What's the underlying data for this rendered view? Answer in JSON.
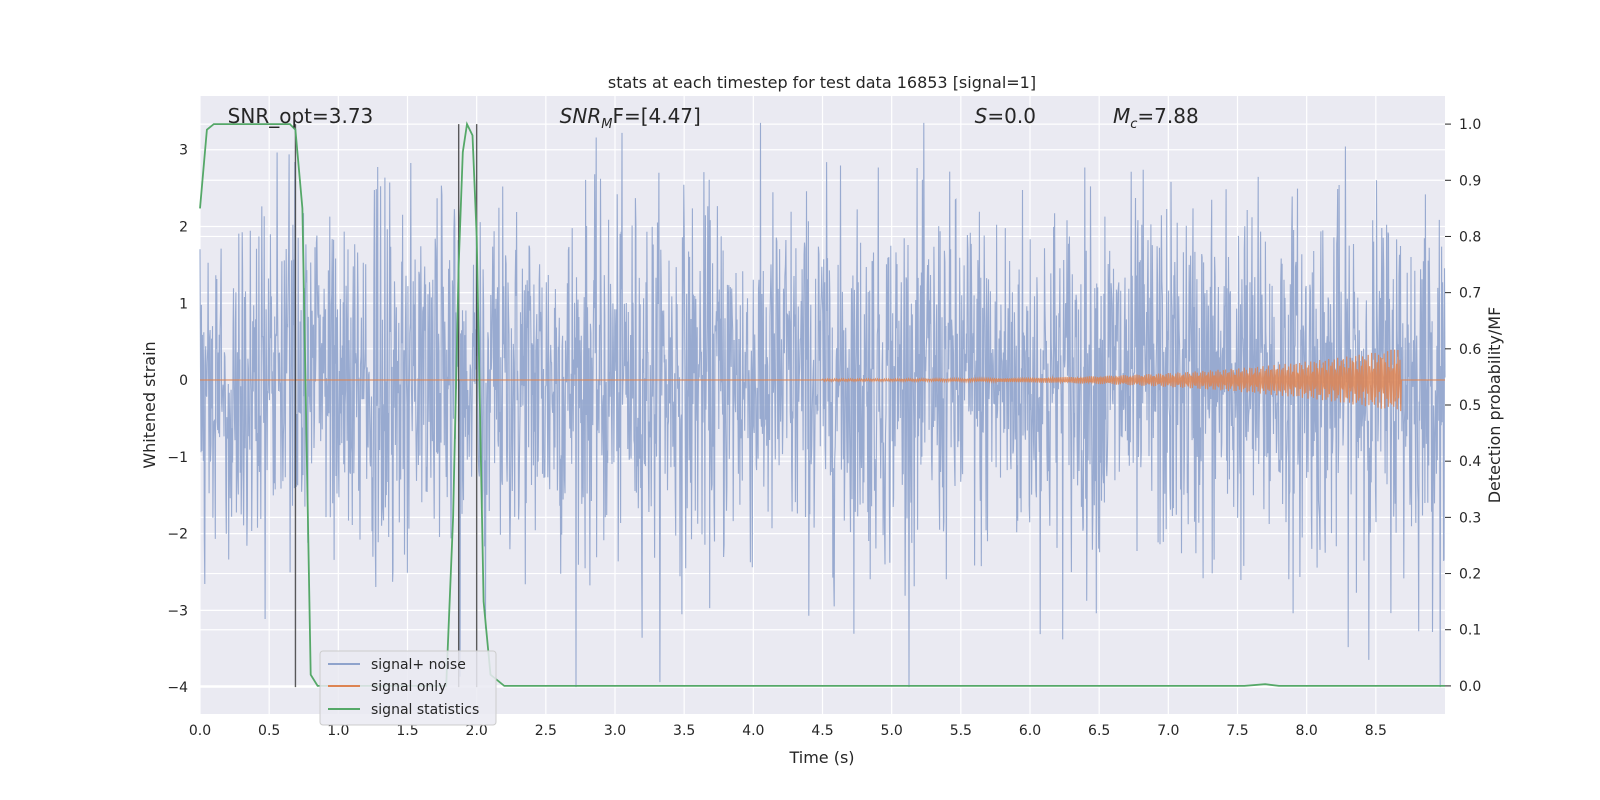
{
  "chart_data": {
    "type": "line",
    "title": "stats at each timestep for test data 16853 [signal=1]",
    "xlabel": "Time (s)",
    "ylabel": "Whitened strain",
    "ylabel_right": "Detection probability/MF",
    "xlim": [
      0.0,
      9.0
    ],
    "ylim": [
      -4.35,
      3.7
    ],
    "ylim_right": [
      -0.05,
      1.05
    ],
    "x_ticks": [
      "0.0",
      "0.5",
      "1.0",
      "1.5",
      "2.0",
      "2.5",
      "3.0",
      "3.5",
      "4.0",
      "4.5",
      "5.0",
      "5.5",
      "6.0",
      "6.5",
      "7.0",
      "7.5",
      "8.0",
      "8.5"
    ],
    "y_ticks": [
      "−4",
      "−3",
      "−2",
      "−1",
      "0",
      "1",
      "2",
      "3"
    ],
    "y_ticks_right": [
      "0.0",
      "0.1",
      "0.2",
      "0.3",
      "0.4",
      "0.5",
      "0.6",
      "0.7",
      "0.8",
      "0.9",
      "1.0"
    ],
    "grid": true,
    "legend_position": "lower-left",
    "annotations": [
      {
        "prefix": "SNR_opt=3.73",
        "sub": "",
        "suffix": "",
        "x": 0.2
      },
      {
        "prefix": "SNR",
        "sub": "M",
        "suffix": "F=[4.47]",
        "x": 2.6
      },
      {
        "prefix": "S",
        "sub": "",
        "suffix": "=0.0",
        "x": 5.6
      },
      {
        "prefix": "M",
        "sub": "c",
        "suffix": "=7.88",
        "x": 6.6
      }
    ],
    "vertical_lines": [
      0.69,
      1.87,
      2.0
    ],
    "series": [
      {
        "name": "signal+ noise",
        "color": "#8fa3cc",
        "description": "noise",
        "amplitude_rms": 0.8
      },
      {
        "name": "signal only",
        "color": "#dd8452",
        "chirp_start": 4.5,
        "chirp_end": 8.68,
        "chirp_peak": 0.4
      },
      {
        "name": "signal statistics",
        "color": "#55a868",
        "axis": "right",
        "x": [
          0.0,
          0.05,
          0.1,
          0.2,
          0.3,
          0.4,
          0.5,
          0.6,
          0.65,
          0.69,
          0.74,
          0.8,
          0.85,
          1.0,
          1.5,
          1.78,
          1.83,
          1.87,
          1.9,
          1.93,
          1.97,
          2.0,
          2.05,
          2.1,
          2.2,
          3.0,
          5.0,
          7.0,
          7.55,
          7.7,
          7.8,
          8.0,
          9.0
        ],
        "y": [
          0.85,
          0.99,
          1.0,
          1.0,
          1.0,
          1.0,
          1.0,
          1.0,
          1.0,
          0.99,
          0.85,
          0.02,
          0.0,
          0.0,
          0.0,
          0.0,
          0.3,
          0.75,
          0.95,
          1.0,
          0.98,
          0.8,
          0.15,
          0.02,
          0.0,
          0.0,
          0.0,
          0.0,
          0.0,
          0.003,
          0.0,
          0.0,
          0.0
        ]
      }
    ]
  }
}
